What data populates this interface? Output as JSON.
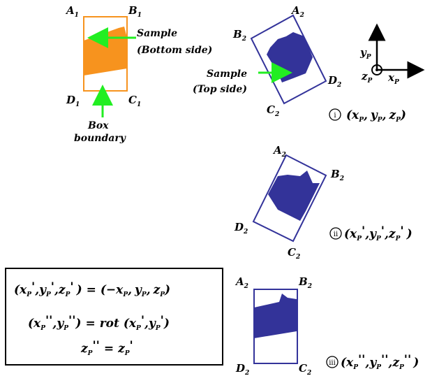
{
  "colors": {
    "bottom_sample": "#F7931E",
    "top_sample": "#333399",
    "box_bottom": "#F7931E",
    "box_top": "#33339A",
    "arrow": "#22EE22",
    "ink": "#000000"
  },
  "panel1": {
    "corner_a": "A",
    "corner_b": "B",
    "corner_c": "C",
    "corner_d": "D",
    "index": "1",
    "sample_label_line1": "Sample",
    "sample_label_line2": "(Bottom side)",
    "box_label_line1": "Box",
    "box_label_line2": "boundary"
  },
  "panel2": {
    "corner_a": "A",
    "corner_b": "B",
    "corner_c": "C",
    "corner_d": "D",
    "index": "2",
    "sample_label_line1": "Sample",
    "sample_label_line2": "(Top side)"
  },
  "panel3": {
    "corner_a": "A",
    "corner_b": "B",
    "corner_c": "C",
    "corner_d": "D",
    "index": "2"
  },
  "panel4": {
    "corner_a": "A",
    "corner_b": "B",
    "corner_c": "C",
    "corner_d": "D",
    "index": "2"
  },
  "axes": {
    "y": "y",
    "z": "z",
    "x": "x",
    "subscript": "P"
  },
  "steps": {
    "i": {
      "marker": "i",
      "open": "(",
      "x": "x",
      "y": "y",
      "z": "z",
      "sep": ",",
      "close": ")"
    },
    "ii": {
      "marker": "ii",
      "open": "(",
      "x": "x",
      "y": "y",
      "z": "z",
      "prime": "'",
      "sep": ",",
      "close": ")"
    },
    "iii": {
      "marker": "iii",
      "open": "(",
      "x": "x",
      "y": "y",
      "z": "z",
      "dprime": "''",
      "sep": ",",
      "close": ")"
    }
  },
  "equations": {
    "line1_lhs_open": "(x",
    "line1_neg": "(−x",
    "equals": "=",
    "rot": "rot",
    "prime": "'",
    "dprime": "''",
    "sub": "P",
    "y": "y",
    "z": "z",
    "sep": ",",
    "close": ")"
  }
}
